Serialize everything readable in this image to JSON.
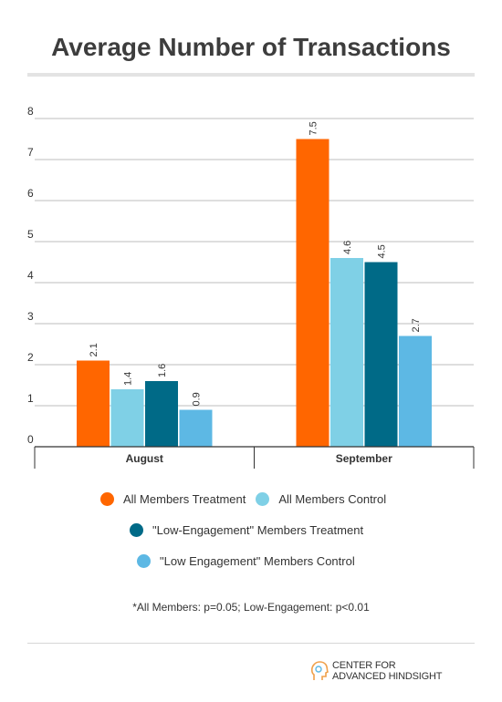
{
  "title": "Average Number of Transactions",
  "footnote": "*All Members: p=0.05; Low-Engagement: p<0.01",
  "logo": {
    "line1": "CENTER FOR",
    "line2": "ADVANCED HINDSIGHT",
    "icon": "head-outline-icon"
  },
  "colors": {
    "series1": "#ff6600",
    "series2": "#7fd0e6",
    "series3": "#006a87",
    "series4": "#5db8e4"
  },
  "chart_data": {
    "type": "bar",
    "title": "Average Number of Transactions",
    "categories": [
      "August",
      "September"
    ],
    "series": [
      {
        "name": "All Members Treatment",
        "values": [
          2.1,
          7.5
        ]
      },
      {
        "name": "All Members Control",
        "values": [
          1.4,
          4.6
        ]
      },
      {
        "name": "\"Low-Engagement\" Members Treatment",
        "values": [
          1.6,
          4.5
        ]
      },
      {
        "name": "\"Low Engagement\" Members Control",
        "values": [
          0.9,
          2.7
        ]
      }
    ],
    "yticks": [
      "0",
      "1",
      "2",
      "3",
      "4",
      "5",
      "6",
      "7",
      "8"
    ],
    "ylim": [
      0,
      8
    ],
    "grid": true,
    "data_labels": true,
    "legend_position": "bottom"
  }
}
